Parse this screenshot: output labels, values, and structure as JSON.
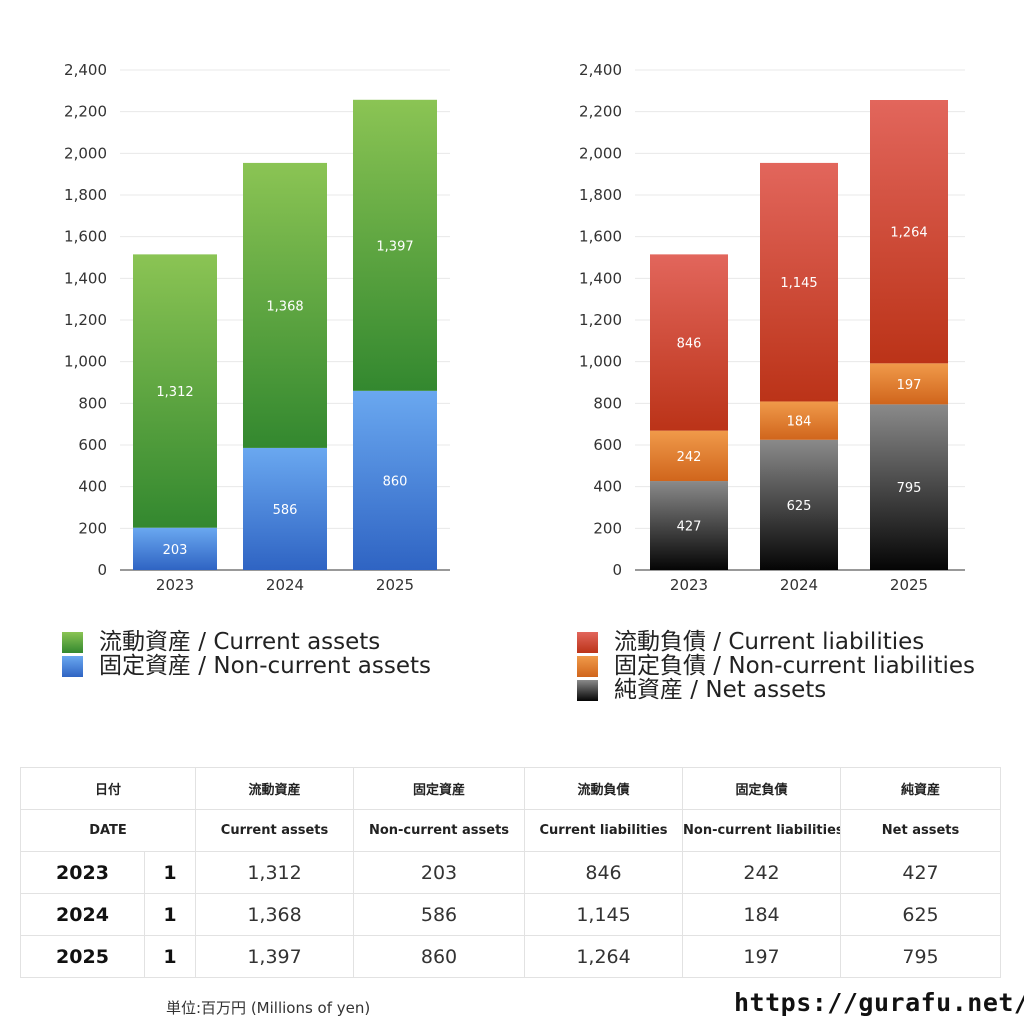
{
  "chart_data": [
    {
      "type": "bar",
      "stacked": true,
      "categories": [
        "2023",
        "2024",
        "2025"
      ],
      "ylim": [
        0,
        2400
      ],
      "yticks": [
        "0",
        "200",
        "400",
        "600",
        "800",
        "1,000",
        "1,200",
        "1,400",
        "1,600",
        "1,800",
        "2,000",
        "2,200",
        "2,400"
      ],
      "grid": true,
      "legend_position": "bottom",
      "series": [
        {
          "name": "固定資産 / Non-current assets",
          "values": [
            203,
            586,
            860
          ],
          "labels": [
            "203",
            "586",
            "860"
          ],
          "color_top": "#6aa8f0",
          "color_bottom": "#2f64c3"
        },
        {
          "name": "流動資産 / Current assets",
          "values": [
            1312,
            1368,
            1397
          ],
          "labels": [
            "1,312",
            "1,368",
            "1,397"
          ],
          "color_top": "#8bc454",
          "color_bottom": "#33882f"
        }
      ],
      "legend_order": [
        1,
        0
      ]
    },
    {
      "type": "bar",
      "stacked": true,
      "categories": [
        "2023",
        "2024",
        "2025"
      ],
      "ylim": [
        0,
        2400
      ],
      "yticks": [
        "0",
        "200",
        "400",
        "600",
        "800",
        "1,000",
        "1,200",
        "1,400",
        "1,600",
        "1,800",
        "2,000",
        "2,200",
        "2,400"
      ],
      "grid": true,
      "legend_position": "bottom",
      "series": [
        {
          "name": "純資産 / Net assets",
          "values": [
            427,
            625,
            795
          ],
          "labels": [
            "427",
            "625",
            "795"
          ],
          "color_top": "#8a8a8a",
          "color_bottom": "#050505"
        },
        {
          "name": "固定負債 / Non-current liabilities",
          "values": [
            242,
            184,
            197
          ],
          "labels": [
            "242",
            "184",
            "197"
          ],
          "color_top": "#f09a4a",
          "color_bottom": "#d0651c"
        },
        {
          "name": "流動負債 / Current liabilities",
          "values": [
            846,
            1145,
            1264
          ],
          "labels": [
            "846",
            "1,145",
            "1,264"
          ],
          "color_top": "#e2665c",
          "color_bottom": "#bb3318"
        }
      ],
      "legend_order": [
        2,
        1,
        0
      ]
    }
  ],
  "table": {
    "header_jp": [
      "日付",
      "流動資産",
      "固定資産",
      "流動負債",
      "固定負債",
      "純資産"
    ],
    "header_en": [
      "DATE",
      "Current assets",
      "Non-current assets",
      "Current liabilities",
      "Non-current liabilities",
      "Net assets"
    ],
    "rows": [
      {
        "year": "2023",
        "month": "1",
        "values": [
          "1,312",
          "203",
          "846",
          "242",
          "427"
        ]
      },
      {
        "year": "2024",
        "month": "1",
        "values": [
          "1,368",
          "586",
          "1,145",
          "184",
          "625"
        ]
      },
      {
        "year": "2025",
        "month": "1",
        "values": [
          "1,397",
          "860",
          "1,264",
          "197",
          "795"
        ]
      }
    ]
  },
  "footer": {
    "unit_note": "単位:百万円 (Millions of yen)",
    "url": "https://gurafu.net/"
  }
}
